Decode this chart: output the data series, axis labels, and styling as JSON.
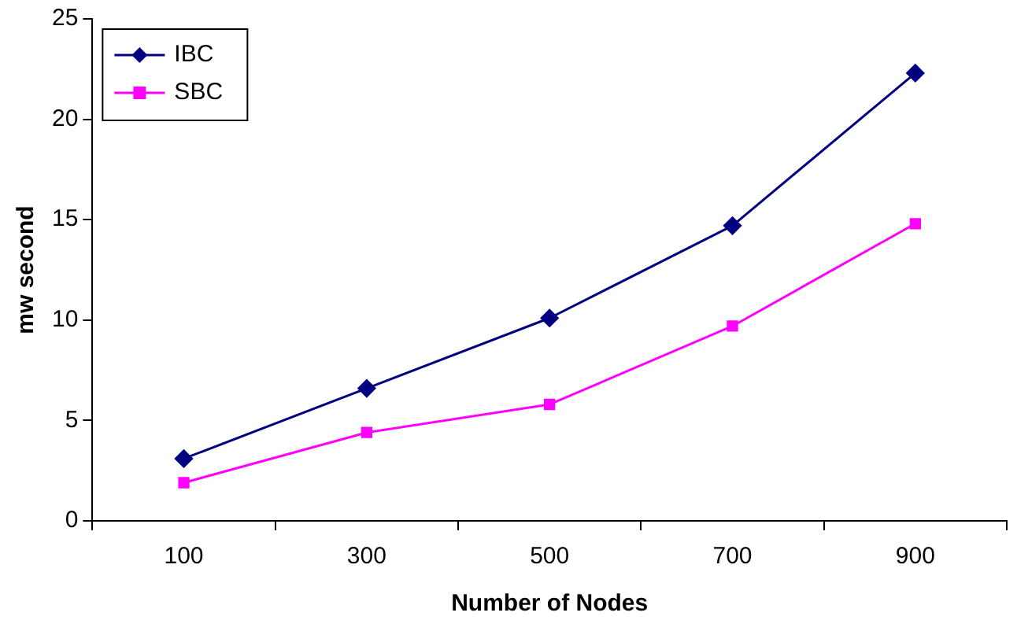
{
  "chart_data": {
    "type": "line",
    "xlabel": "Number of Nodes",
    "ylabel": "mw second",
    "categories": [
      "100",
      "300",
      "500",
      "700",
      "900"
    ],
    "series": [
      {
        "name": "IBC",
        "color": "#000080",
        "marker": "diamond",
        "values": [
          3.1,
          6.6,
          10.1,
          14.7,
          22.3
        ]
      },
      {
        "name": "SBC",
        "color": "#ff00ff",
        "marker": "square",
        "values": [
          1.9,
          4.4,
          5.8,
          9.7,
          14.8
        ]
      }
    ],
    "ylim": [
      0,
      25
    ],
    "yticks": [
      0,
      5,
      10,
      15,
      20,
      25
    ],
    "grid": false,
    "legend": "top left"
  }
}
